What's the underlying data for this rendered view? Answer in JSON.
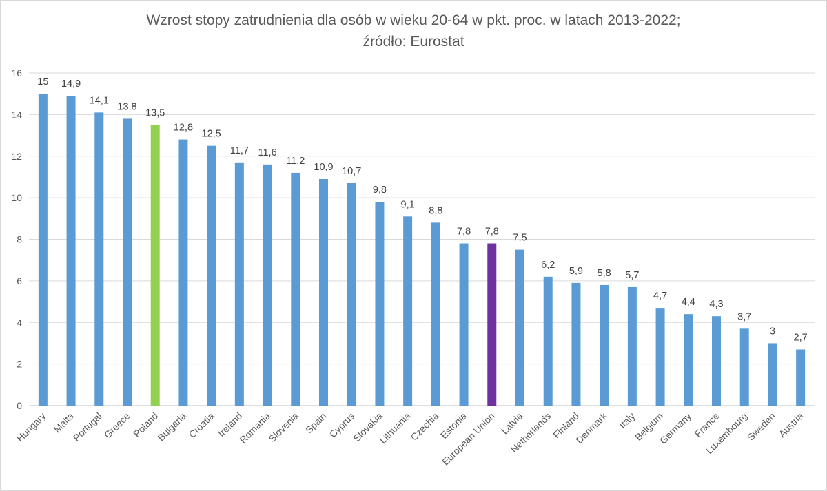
{
  "chart_data": {
    "type": "bar",
    "title": "Wzrost stopy zatrudnienia dla osób w wieku 20-64 w pkt. proc. w latach 2013-2022;",
    "subtitle": "źródło: Eurostat",
    "xlabel": "",
    "ylabel": "",
    "ylim": [
      0,
      16
    ],
    "yticks": [
      0,
      2,
      4,
      6,
      8,
      10,
      12,
      14,
      16
    ],
    "grid": true,
    "legend": "none",
    "categories": [
      "Hungary",
      "Malta",
      "Portugal",
      "Greece",
      "Poland",
      "Bulgaria",
      "Croatia",
      "Ireland",
      "Romania",
      "Slovenia",
      "Spain",
      "Cyprus",
      "Slovakia",
      "Lithuania",
      "Czechia",
      "Estonia",
      "European Union",
      "Latvia",
      "Netherlands",
      "Finland",
      "Denmark",
      "Italy",
      "Belgium",
      "Germany",
      "France",
      "Luxembourg",
      "Sweden",
      "Austria"
    ],
    "values": [
      15,
      14.9,
      14.1,
      13.8,
      13.5,
      12.8,
      12.5,
      11.7,
      11.6,
      11.2,
      10.9,
      10.7,
      9.8,
      9.1,
      8.8,
      7.8,
      7.8,
      7.5,
      6.2,
      5.9,
      5.8,
      5.7,
      4.7,
      4.4,
      4.3,
      3.7,
      3,
      2.7
    ],
    "data_labels": [
      "15",
      "14,9",
      "14,1",
      "13,8",
      "13,5",
      "12,8",
      "12,5",
      "11,7",
      "11,6",
      "11,2",
      "10,9",
      "10,7",
      "9,8",
      "9,1",
      "8,8",
      "7,8",
      "7,8",
      "7,5",
      "6,2",
      "5,9",
      "5,8",
      "5,7",
      "4,7",
      "4,4",
      "4,3",
      "3,7",
      "3",
      "2,7"
    ],
    "colors": {
      "default": "#5b9bd5",
      "highlights": {
        "Poland": "#92d050",
        "European Union": "#7030a0"
      },
      "grid": "#d9d9d9",
      "axis": "#bfbfbf"
    }
  }
}
